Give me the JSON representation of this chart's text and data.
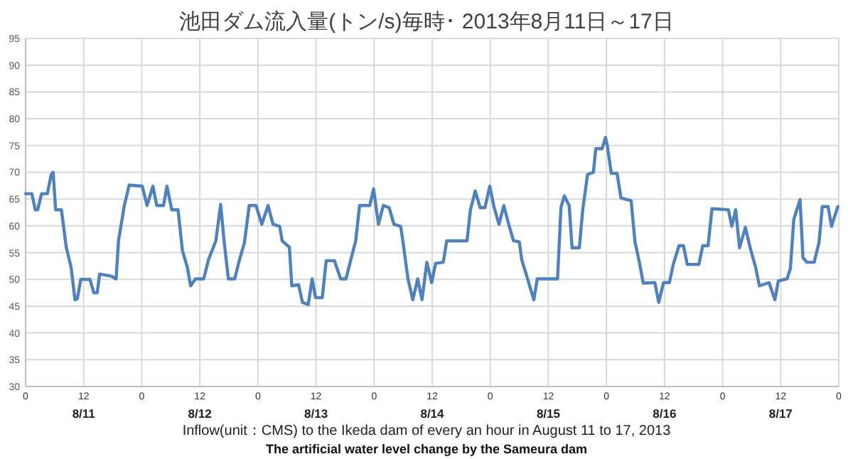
{
  "chart_data": {
    "type": "line",
    "title": "池田ダム流入量(トン/s)毎時･ 2013年8月11日～17日",
    "xlabel": "Inflow(unit：CMS) to the Ikeda dam of every an hour in August 11 to 17, 2013",
    "annotations": [
      "The artificial water level change by the Sameura dam"
    ],
    "xlim": [
      "2013-08-11T00:00",
      "2013-08-18T00:00"
    ],
    "ylim": [
      30,
      95
    ],
    "yticks": [
      30,
      35,
      40,
      45,
      50,
      55,
      60,
      65,
      70,
      75,
      80,
      85,
      90,
      95
    ],
    "xticks": [
      {
        "value": "2013-08-11T00:00",
        "label": "0"
      },
      {
        "value": "2013-08-11T12:00",
        "label": "12\n8/11"
      },
      {
        "value": "2013-08-12T00:00",
        "label": "0"
      },
      {
        "value": "2013-08-12T12:00",
        "label": "12\n8/12"
      },
      {
        "value": "2013-08-13T00:00",
        "label": "0"
      },
      {
        "value": "2013-08-13T12:00",
        "label": "12\n8/13"
      },
      {
        "value": "2013-08-14T00:00",
        "label": "0"
      },
      {
        "value": "2013-08-14T12:00",
        "label": "12\n8/14"
      },
      {
        "value": "2013-08-15T00:00",
        "label": "0"
      },
      {
        "value": "2013-08-15T12:00",
        "label": "12\n8/15"
      },
      {
        "value": "2013-08-16T00:00",
        "label": "0"
      },
      {
        "value": "2013-08-16T12:00",
        "label": "12\n8/16"
      },
      {
        "value": "2013-08-17T00:00",
        "label": "0"
      },
      {
        "value": "2013-08-17T12:00",
        "label": "12\n8/17"
      },
      {
        "value": "2013-08-18T00:00",
        "label": "0"
      }
    ],
    "grid": true,
    "line_style": "solid",
    "series": [
      {
        "color": "#4f81bd",
        "x": [
          "2013-08-11T00:00",
          "2013-08-11T01:18",
          "2013-08-11T02:00",
          "2013-08-11T02:30",
          "2013-08-11T03:18",
          "2013-08-11T04:30",
          "2013-08-11T05:18",
          "2013-08-11T05:42",
          "2013-08-11T06:12",
          "2013-08-11T07:24",
          "2013-08-11T08:24",
          "2013-08-11T09:24",
          "2013-08-11T10:12",
          "2013-08-11T10:42",
          "2013-08-11T11:24",
          "2013-08-11T13:18",
          "2013-08-11T14:06",
          "2013-08-11T14:48",
          "2013-08-11T15:18",
          "2013-08-11T17:42",
          "2013-08-11T18:42",
          "2013-08-11T19:12",
          "2013-08-11T20:24",
          "2013-08-11T21:24",
          "2013-08-12T00:06",
          "2013-08-12T01:06",
          "2013-08-12T02:18",
          "2013-08-12T03:06",
          "2013-08-12T04:30",
          "2013-08-12T05:12",
          "2013-08-12T06:12",
          "2013-08-12T07:30",
          "2013-08-12T08:24",
          "2013-08-12T09:24",
          "2013-08-12T10:06",
          "2013-08-12T11:06",
          "2013-08-12T12:48",
          "2013-08-12T13:48",
          "2013-08-12T15:18",
          "2013-08-12T16:18",
          "2013-08-12T17:00",
          "2013-08-12T17:54",
          "2013-08-12T19:12",
          "2013-08-12T20:12",
          "2013-08-12T21:12",
          "2013-08-12T22:12",
          "2013-08-12T23:36",
          "2013-08-13T00:48",
          "2013-08-13T02:06",
          "2013-08-13T03:06",
          "2013-08-13T04:30",
          "2013-08-13T05:00",
          "2013-08-13T06:30",
          "2013-08-13T07:00",
          "2013-08-13T08:24",
          "2013-08-13T09:12",
          "2013-08-13T10:24",
          "2013-08-13T11:12",
          "2013-08-13T11:54",
          "2013-08-13T13:18",
          "2013-08-13T14:06",
          "2013-08-13T15:48",
          "2013-08-13T17:06",
          "2013-08-13T18:12",
          "2013-08-13T19:12",
          "2013-08-13T20:12",
          "2013-08-13T21:00",
          "2013-08-13T23:06",
          "2013-08-13T23:54",
          "2013-08-14T00:54",
          "2013-08-14T01:54",
          "2013-08-14T03:06",
          "2013-08-14T04:06",
          "2013-08-14T05:30",
          "2013-08-14T06:00",
          "2013-08-14T07:00",
          "2013-08-14T08:00",
          "2013-08-14T09:00",
          "2013-08-14T09:54",
          "2013-08-14T10:54",
          "2013-08-14T11:54",
          "2013-08-14T12:42",
          "2013-08-14T14:18",
          "2013-08-14T15:00",
          "2013-08-14T19:12",
          "2013-08-14T19:54",
          "2013-08-14T20:54",
          "2013-08-14T21:54",
          "2013-08-14T22:54",
          "2013-08-14T23:54",
          "2013-08-15T00:48",
          "2013-08-15T01:48",
          "2013-08-15T02:48",
          "2013-08-15T03:48",
          "2013-08-15T04:48",
          "2013-08-15T06:00",
          "2013-08-15T06:30",
          "2013-08-15T07:42",
          "2013-08-15T09:00",
          "2013-08-15T09:42",
          "2013-08-15T13:54",
          "2013-08-15T14:36",
          "2013-08-15T15:18",
          "2013-08-15T16:18",
          "2013-08-15T16:54",
          "2013-08-15T18:24",
          "2013-08-15T19:06",
          "2013-08-15T20:06",
          "2013-08-15T21:18",
          "2013-08-15T21:48",
          "2013-08-15T23:06",
          "2013-08-15T23:48",
          "2013-08-16T00:12",
          "2013-08-16T01:00",
          "2013-08-16T02:12",
          "2013-08-16T03:00",
          "2013-08-16T05:06",
          "2013-08-16T05:54",
          "2013-08-16T06:54",
          "2013-08-16T07:36",
          "2013-08-16T10:00",
          "2013-08-16T10:48",
          "2013-08-16T11:48",
          "2013-08-16T13:00",
          "2013-08-16T13:48",
          "2013-08-16T15:00",
          "2013-08-16T15:54",
          "2013-08-16T16:42",
          "2013-08-16T19:06",
          "2013-08-16T19:54",
          "2013-08-16T21:00",
          "2013-08-16T21:48",
          "2013-08-17T01:12",
          "2013-08-17T01:54",
          "2013-08-17T02:42",
          "2013-08-17T03:30",
          "2013-08-17T04:42",
          "2013-08-17T05:42",
          "2013-08-17T06:48",
          "2013-08-17T07:36",
          "2013-08-17T09:36",
          "2013-08-17T10:48",
          "2013-08-17T11:30",
          "2013-08-17T13:18",
          "2013-08-17T14:00",
          "2013-08-17T14:42",
          "2013-08-17T16:00",
          "2013-08-17T16:36",
          "2013-08-17T17:24",
          "2013-08-17T18:54",
          "2013-08-17T19:54",
          "2013-08-17T20:36",
          "2013-08-17T21:48",
          "2013-08-17T22:30",
          "2013-08-17T23:48"
        ],
        "values": [
          66,
          66,
          63,
          63,
          66,
          66,
          69.6,
          70,
          63,
          63,
          56,
          52.3,
          46.2,
          46.4,
          50,
          50,
          47.5,
          47.5,
          51,
          50.6,
          50.1,
          57.2,
          63.8,
          67.6,
          67.4,
          63.8,
          67.4,
          63.8,
          63.8,
          67.4,
          63,
          63,
          55.4,
          52.3,
          48.8,
          50.1,
          50.1,
          53.7,
          57.2,
          64,
          57.2,
          50.1,
          50.1,
          53.7,
          56.8,
          63.8,
          63.8,
          60.3,
          63.8,
          60.3,
          59.9,
          57.2,
          56,
          48.8,
          49,
          45.7,
          45.3,
          50.1,
          46.6,
          46.6,
          53.5,
          53.5,
          50.1,
          50.1,
          53.7,
          57.2,
          63.8,
          63.8,
          66.9,
          60.3,
          63.8,
          63.4,
          60.3,
          59.9,
          56.8,
          50.1,
          46.2,
          50.1,
          46.2,
          53.2,
          49.4,
          53,
          53.2,
          57.2,
          57.2,
          63,
          66.5,
          63.4,
          63.4,
          67.4,
          63.4,
          60.3,
          63.8,
          60.3,
          57.2,
          57,
          53.7,
          50.1,
          46.2,
          50.1,
          50.1,
          63.4,
          65.6,
          63.8,
          55.9,
          55.9,
          63,
          69.6,
          70,
          74.4,
          74.4,
          76.5,
          74.9,
          69.8,
          69.8,
          65.2,
          64.7,
          57,
          52.8,
          49.3,
          49.4,
          45.7,
          49.4,
          49.4,
          52.8,
          56.3,
          56.3,
          52.8,
          52.8,
          56.3,
          56.3,
          63.2,
          63,
          59.9,
          63,
          55.9,
          59.7,
          55.9,
          52.3,
          48.8,
          49.4,
          46.2,
          49.7,
          50.1,
          52,
          61.2,
          64.9,
          54.1,
          53.2,
          53.2,
          56.8,
          63.6,
          63.6,
          59.9,
          63.6
        ]
      }
    ]
  }
}
